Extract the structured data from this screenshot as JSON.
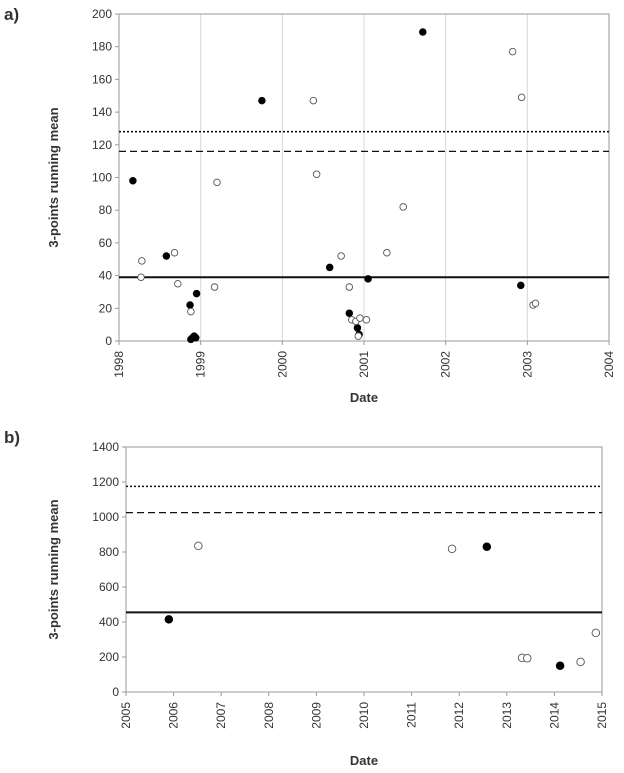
{
  "chart_data": [
    {
      "type": "scatter",
      "panel_label": "a)",
      "xlabel": "Date",
      "ylabel": "3-points running mean",
      "xlim": [
        1998,
        2004
      ],
      "ylim": [
        0,
        200
      ],
      "x_ticks": [
        "1998",
        "1999",
        "2000",
        "2001",
        "2002",
        "2003",
        "2004"
      ],
      "y_ticks": [
        "0",
        "20",
        "40",
        "60",
        "80",
        "100",
        "120",
        "140",
        "160",
        "180",
        "200"
      ],
      "grid": "vertical",
      "reference_lines": [
        {
          "name": "solid",
          "value": 39
        },
        {
          "name": "dashed",
          "value": 116
        },
        {
          "name": "dotted",
          "value": 128
        }
      ],
      "series": [
        {
          "name": "filled",
          "points": [
            [
              1998.17,
              98
            ],
            [
              1998.58,
              52
            ],
            [
              1998.87,
              22
            ],
            [
              1998.88,
              1
            ],
            [
              1998.9,
              2
            ],
            [
              1998.92,
              3
            ],
            [
              1998.94,
              2
            ],
            [
              1998.95,
              29
            ],
            [
              1999.75,
              147
            ],
            [
              2000.58,
              45
            ],
            [
              2000.82,
              17
            ],
            [
              2000.92,
              8
            ],
            [
              2000.94,
              4
            ],
            [
              2001.05,
              38
            ],
            [
              2001.72,
              189
            ],
            [
              2002.92,
              34
            ]
          ]
        },
        {
          "name": "open",
          "points": [
            [
              1998.27,
              39
            ],
            [
              1998.28,
              49
            ],
            [
              1998.68,
              54
            ],
            [
              1998.72,
              35
            ],
            [
              1998.88,
              18
            ],
            [
              1999.17,
              33
            ],
            [
              1999.2,
              97
            ],
            [
              2000.38,
              147
            ],
            [
              2000.42,
              102
            ],
            [
              2000.72,
              52
            ],
            [
              2000.82,
              33
            ],
            [
              2000.85,
              13
            ],
            [
              2000.9,
              12
            ],
            [
              2000.95,
              14
            ],
            [
              2000.93,
              3
            ],
            [
              2001.03,
              13
            ],
            [
              2001.28,
              54
            ],
            [
              2001.48,
              82
            ],
            [
              2002.82,
              177
            ],
            [
              2002.93,
              149
            ],
            [
              2003.07,
              22
            ],
            [
              2003.1,
              23
            ]
          ]
        }
      ]
    },
    {
      "type": "scatter",
      "panel_label": "b)",
      "xlabel": "Date",
      "ylabel": "3-points running mean",
      "xlim": [
        2005,
        2015
      ],
      "ylim": [
        0,
        1400
      ],
      "x_ticks": [
        "2005",
        "2006",
        "2007",
        "2008",
        "2009",
        "2010",
        "2011",
        "2012",
        "2013",
        "2014",
        "2015"
      ],
      "y_ticks": [
        "0",
        "200",
        "400",
        "600",
        "800",
        "1000",
        "1200",
        "1400"
      ],
      "grid": "none",
      "reference_lines": [
        {
          "name": "solid",
          "value": 455
        },
        {
          "name": "dashed",
          "value": 1025
        },
        {
          "name": "dotted",
          "value": 1175
        }
      ],
      "series": [
        {
          "name": "filled",
          "points": [
            [
              2005.9,
              415
            ],
            [
              2012.58,
              830
            ],
            [
              2014.12,
              150
            ]
          ]
        },
        {
          "name": "open",
          "points": [
            [
              2006.52,
              835
            ],
            [
              2011.85,
              818
            ],
            [
              2013.32,
              195
            ],
            [
              2013.43,
              193
            ],
            [
              2014.55,
              172
            ],
            [
              2014.87,
              338
            ]
          ]
        }
      ]
    }
  ]
}
